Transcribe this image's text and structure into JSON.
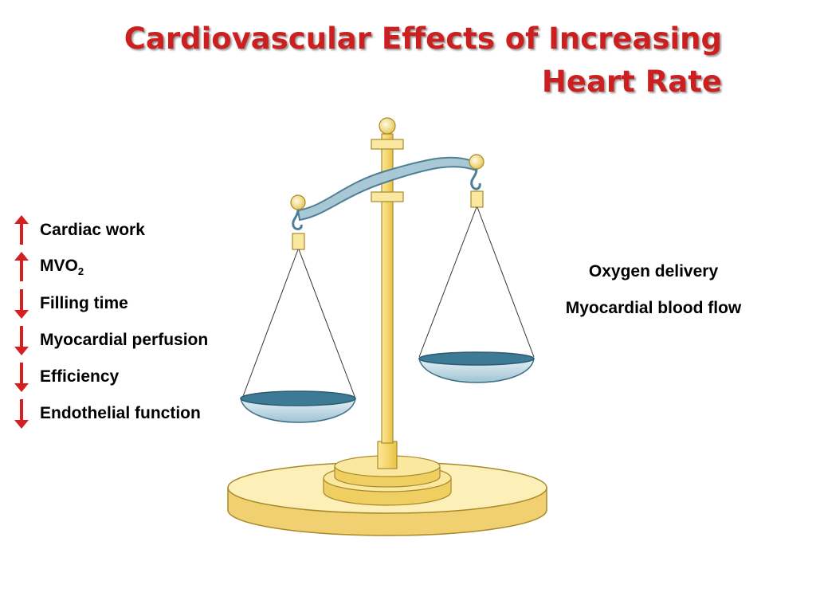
{
  "title": {
    "line1": "Cardiovascular Effects of Increasing",
    "line2": "Heart Rate"
  },
  "left_factors": [
    {
      "label": "Cardiac work",
      "direction": "up",
      "icon": "arrow-up-icon"
    },
    {
      "label": "MVO",
      "sub": "2",
      "direction": "up",
      "icon": "arrow-up-icon"
    },
    {
      "label": "Filling time",
      "direction": "down",
      "icon": "arrow-down-icon"
    },
    {
      "label": "Myocardial perfusion",
      "direction": "down",
      "icon": "arrow-down-icon"
    },
    {
      "label": "Efficiency",
      "direction": "down",
      "icon": "arrow-down-icon"
    },
    {
      "label": "Endothelial function",
      "direction": "down",
      "icon": "arrow-down-icon"
    }
  ],
  "right_factors": [
    {
      "label": "Oxygen delivery"
    },
    {
      "label": "Myocardial blood flow"
    }
  ],
  "colors": {
    "title": "#cc1f1f",
    "arrow": "#d42020",
    "gold": "#f5d76e",
    "beam": "#9bbfcf",
    "pan": "#b8d6e4",
    "water": "#3d7a96"
  },
  "illustration": "balance-scale-icon"
}
